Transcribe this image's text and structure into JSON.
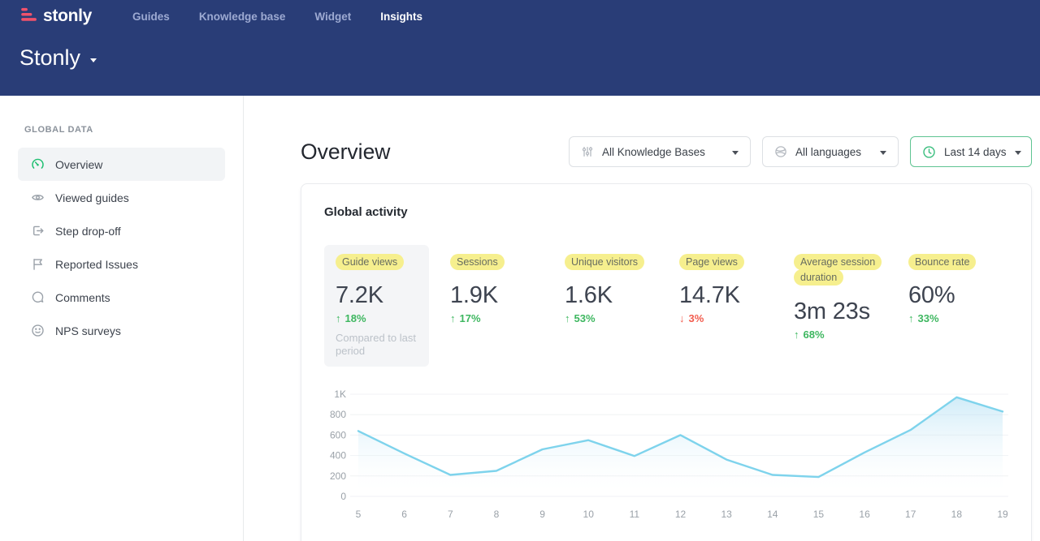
{
  "topnav": {
    "logo_text": "stonly",
    "items": [
      {
        "label": "Guides",
        "active": false
      },
      {
        "label": "Knowledge base",
        "active": false
      },
      {
        "label": "Widget",
        "active": false
      },
      {
        "label": "Insights",
        "active": true
      }
    ]
  },
  "workspace": {
    "name": "Stonly"
  },
  "sidebar": {
    "section_title": "GLOBAL DATA",
    "items": [
      {
        "label": "Overview",
        "icon": "gauge-icon",
        "active": true
      },
      {
        "label": "Viewed guides",
        "icon": "eye-icon",
        "active": false
      },
      {
        "label": "Step drop-off",
        "icon": "step-exit-icon",
        "active": false
      },
      {
        "label": "Reported Issues",
        "icon": "flag-icon",
        "active": false
      },
      {
        "label": "Comments",
        "icon": "comment-icon",
        "active": false
      },
      {
        "label": "NPS surveys",
        "icon": "smiley-icon",
        "active": false
      }
    ]
  },
  "main": {
    "page_title": "Overview",
    "filters": [
      {
        "label": "All Knowledge Bases",
        "icon": "sliders-icon",
        "accent": false
      },
      {
        "label": "All languages",
        "icon": "globe-icon",
        "accent": false
      },
      {
        "label": "Last 14 days",
        "icon": "clock-icon",
        "accent": true
      }
    ],
    "card": {
      "title": "Global activity",
      "metrics": [
        {
          "label": "Guide views",
          "value": "7.2K",
          "change": "18%",
          "direction": "up",
          "selected": true,
          "note": "Compared to last period"
        },
        {
          "label": "Sessions",
          "value": "1.9K",
          "change": "17%",
          "direction": "up",
          "selected": false,
          "note": ""
        },
        {
          "label": "Unique visitors",
          "value": "1.6K",
          "change": "53%",
          "direction": "up",
          "selected": false,
          "note": ""
        },
        {
          "label": "Page views",
          "value": "14.7K",
          "change": "3%",
          "direction": "down",
          "selected": false,
          "note": ""
        },
        {
          "label": "Average session duration",
          "value": "3m 23s",
          "change": "68%",
          "direction": "up",
          "selected": false,
          "note": ""
        },
        {
          "label": "Bounce rate",
          "value": "60%",
          "change": "33%",
          "direction": "up",
          "selected": false,
          "note": ""
        }
      ]
    }
  },
  "chart_data": {
    "type": "area",
    "title": "Global activity",
    "x": [
      5,
      6,
      7,
      8,
      9,
      10,
      11,
      12,
      13,
      14,
      15,
      16,
      17,
      18,
      19
    ],
    "values": [
      640,
      420,
      210,
      250,
      460,
      550,
      395,
      600,
      360,
      210,
      190,
      430,
      650,
      970,
      830
    ],
    "ylim": [
      0,
      1000
    ],
    "y_ticks": [
      0,
      200,
      400,
      600,
      800,
      1000
    ],
    "y_tick_labels": [
      "0",
      "200",
      "400",
      "600",
      "800",
      "1K"
    ],
    "grid": true,
    "legend": "none",
    "xlabel": "",
    "ylabel": ""
  },
  "colors": {
    "header_bg": "#293d77",
    "logo_pink": "#f0526b",
    "accent_green": "#2fbf71",
    "up_green": "#3eb760",
    "down_red": "#f25c4e",
    "highlight_yellow": "#f6ef8e",
    "chart_line": "#7ed3ec",
    "axis_label": "#9aa1a8"
  }
}
